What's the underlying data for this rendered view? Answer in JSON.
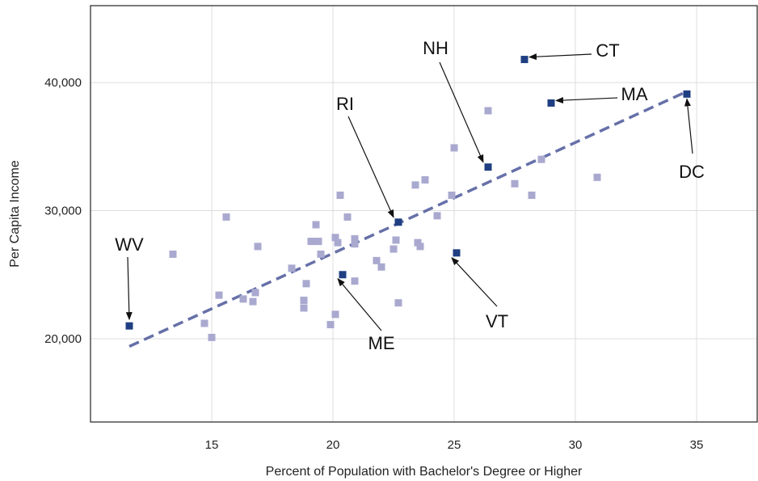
{
  "chart_data": {
    "type": "scatter",
    "title": "",
    "xlabel": "Percent of Population with Bachelor's Degree or Higher",
    "ylabel": "Per Capita Income",
    "xlim": [
      10.0,
      37.5
    ],
    "ylim": [
      13500,
      46000
    ],
    "x_ticks": [
      15,
      20,
      25,
      30,
      35
    ],
    "y_ticks": [
      20000,
      30000,
      40000
    ],
    "x_tick_labels": [
      "15",
      "20",
      "25",
      "30",
      "35"
    ],
    "y_tick_labels": [
      "20,000",
      "30,000",
      "40,000"
    ],
    "grid": true,
    "colors": {
      "background_point": "#a9a9d0",
      "highlight_point": "#1f3f82",
      "trend_line": "#6670a8",
      "grid": "#dddddd"
    },
    "trend_line": {
      "style": "dashed",
      "x": [
        11.6,
        34.6
      ],
      "y": [
        19400,
        39300
      ]
    },
    "points": [
      {
        "x": 13.4,
        "y": 26600
      },
      {
        "x": 14.7,
        "y": 21200
      },
      {
        "x": 15.0,
        "y": 20100
      },
      {
        "x": 15.3,
        "y": 23400
      },
      {
        "x": 15.6,
        "y": 29500
      },
      {
        "x": 16.3,
        "y": 23100
      },
      {
        "x": 16.7,
        "y": 22900
      },
      {
        "x": 16.8,
        "y": 23600
      },
      {
        "x": 16.9,
        "y": 27200
      },
      {
        "x": 18.3,
        "y": 25500
      },
      {
        "x": 18.8,
        "y": 23000
      },
      {
        "x": 18.8,
        "y": 22400
      },
      {
        "x": 18.9,
        "y": 24300
      },
      {
        "x": 19.1,
        "y": 27600
      },
      {
        "x": 19.2,
        "y": 27600
      },
      {
        "x": 19.3,
        "y": 28900
      },
      {
        "x": 19.4,
        "y": 27600
      },
      {
        "x": 19.5,
        "y": 26600
      },
      {
        "x": 19.9,
        "y": 21100
      },
      {
        "x": 20.1,
        "y": 21900
      },
      {
        "x": 20.1,
        "y": 27900
      },
      {
        "x": 20.2,
        "y": 27500
      },
      {
        "x": 20.3,
        "y": 31200
      },
      {
        "x": 20.6,
        "y": 29500
      },
      {
        "x": 20.9,
        "y": 27800
      },
      {
        "x": 20.9,
        "y": 27400
      },
      {
        "x": 20.9,
        "y": 24500
      },
      {
        "x": 21.8,
        "y": 26100
      },
      {
        "x": 22.0,
        "y": 25600
      },
      {
        "x": 22.5,
        "y": 27000
      },
      {
        "x": 22.6,
        "y": 27700
      },
      {
        "x": 22.7,
        "y": 22800
      },
      {
        "x": 23.4,
        "y": 32000
      },
      {
        "x": 23.5,
        "y": 27500
      },
      {
        "x": 23.6,
        "y": 27200
      },
      {
        "x": 23.8,
        "y": 32400
      },
      {
        "x": 24.3,
        "y": 29600
      },
      {
        "x": 24.9,
        "y": 31200
      },
      {
        "x": 25.0,
        "y": 34900
      },
      {
        "x": 26.4,
        "y": 37800
      },
      {
        "x": 27.5,
        "y": 32100
      },
      {
        "x": 28.2,
        "y": 31200
      },
      {
        "x": 28.6,
        "y": 34000
      },
      {
        "x": 30.9,
        "y": 32600
      }
    ],
    "highlighted": [
      {
        "label": "WV",
        "x": 11.6,
        "y": 21000
      },
      {
        "label": "ME",
        "x": 20.4,
        "y": 25000
      },
      {
        "label": "RI",
        "x": 22.7,
        "y": 29100
      },
      {
        "label": "VT",
        "x": 25.1,
        "y": 26700
      },
      {
        "label": "NH",
        "x": 26.4,
        "y": 33400
      },
      {
        "label": "CT",
        "x": 27.9,
        "y": 41800
      },
      {
        "label": "MA",
        "x": 29.0,
        "y": 38400
      },
      {
        "label": "DC",
        "x": 34.6,
        "y": 39100
      }
    ]
  }
}
